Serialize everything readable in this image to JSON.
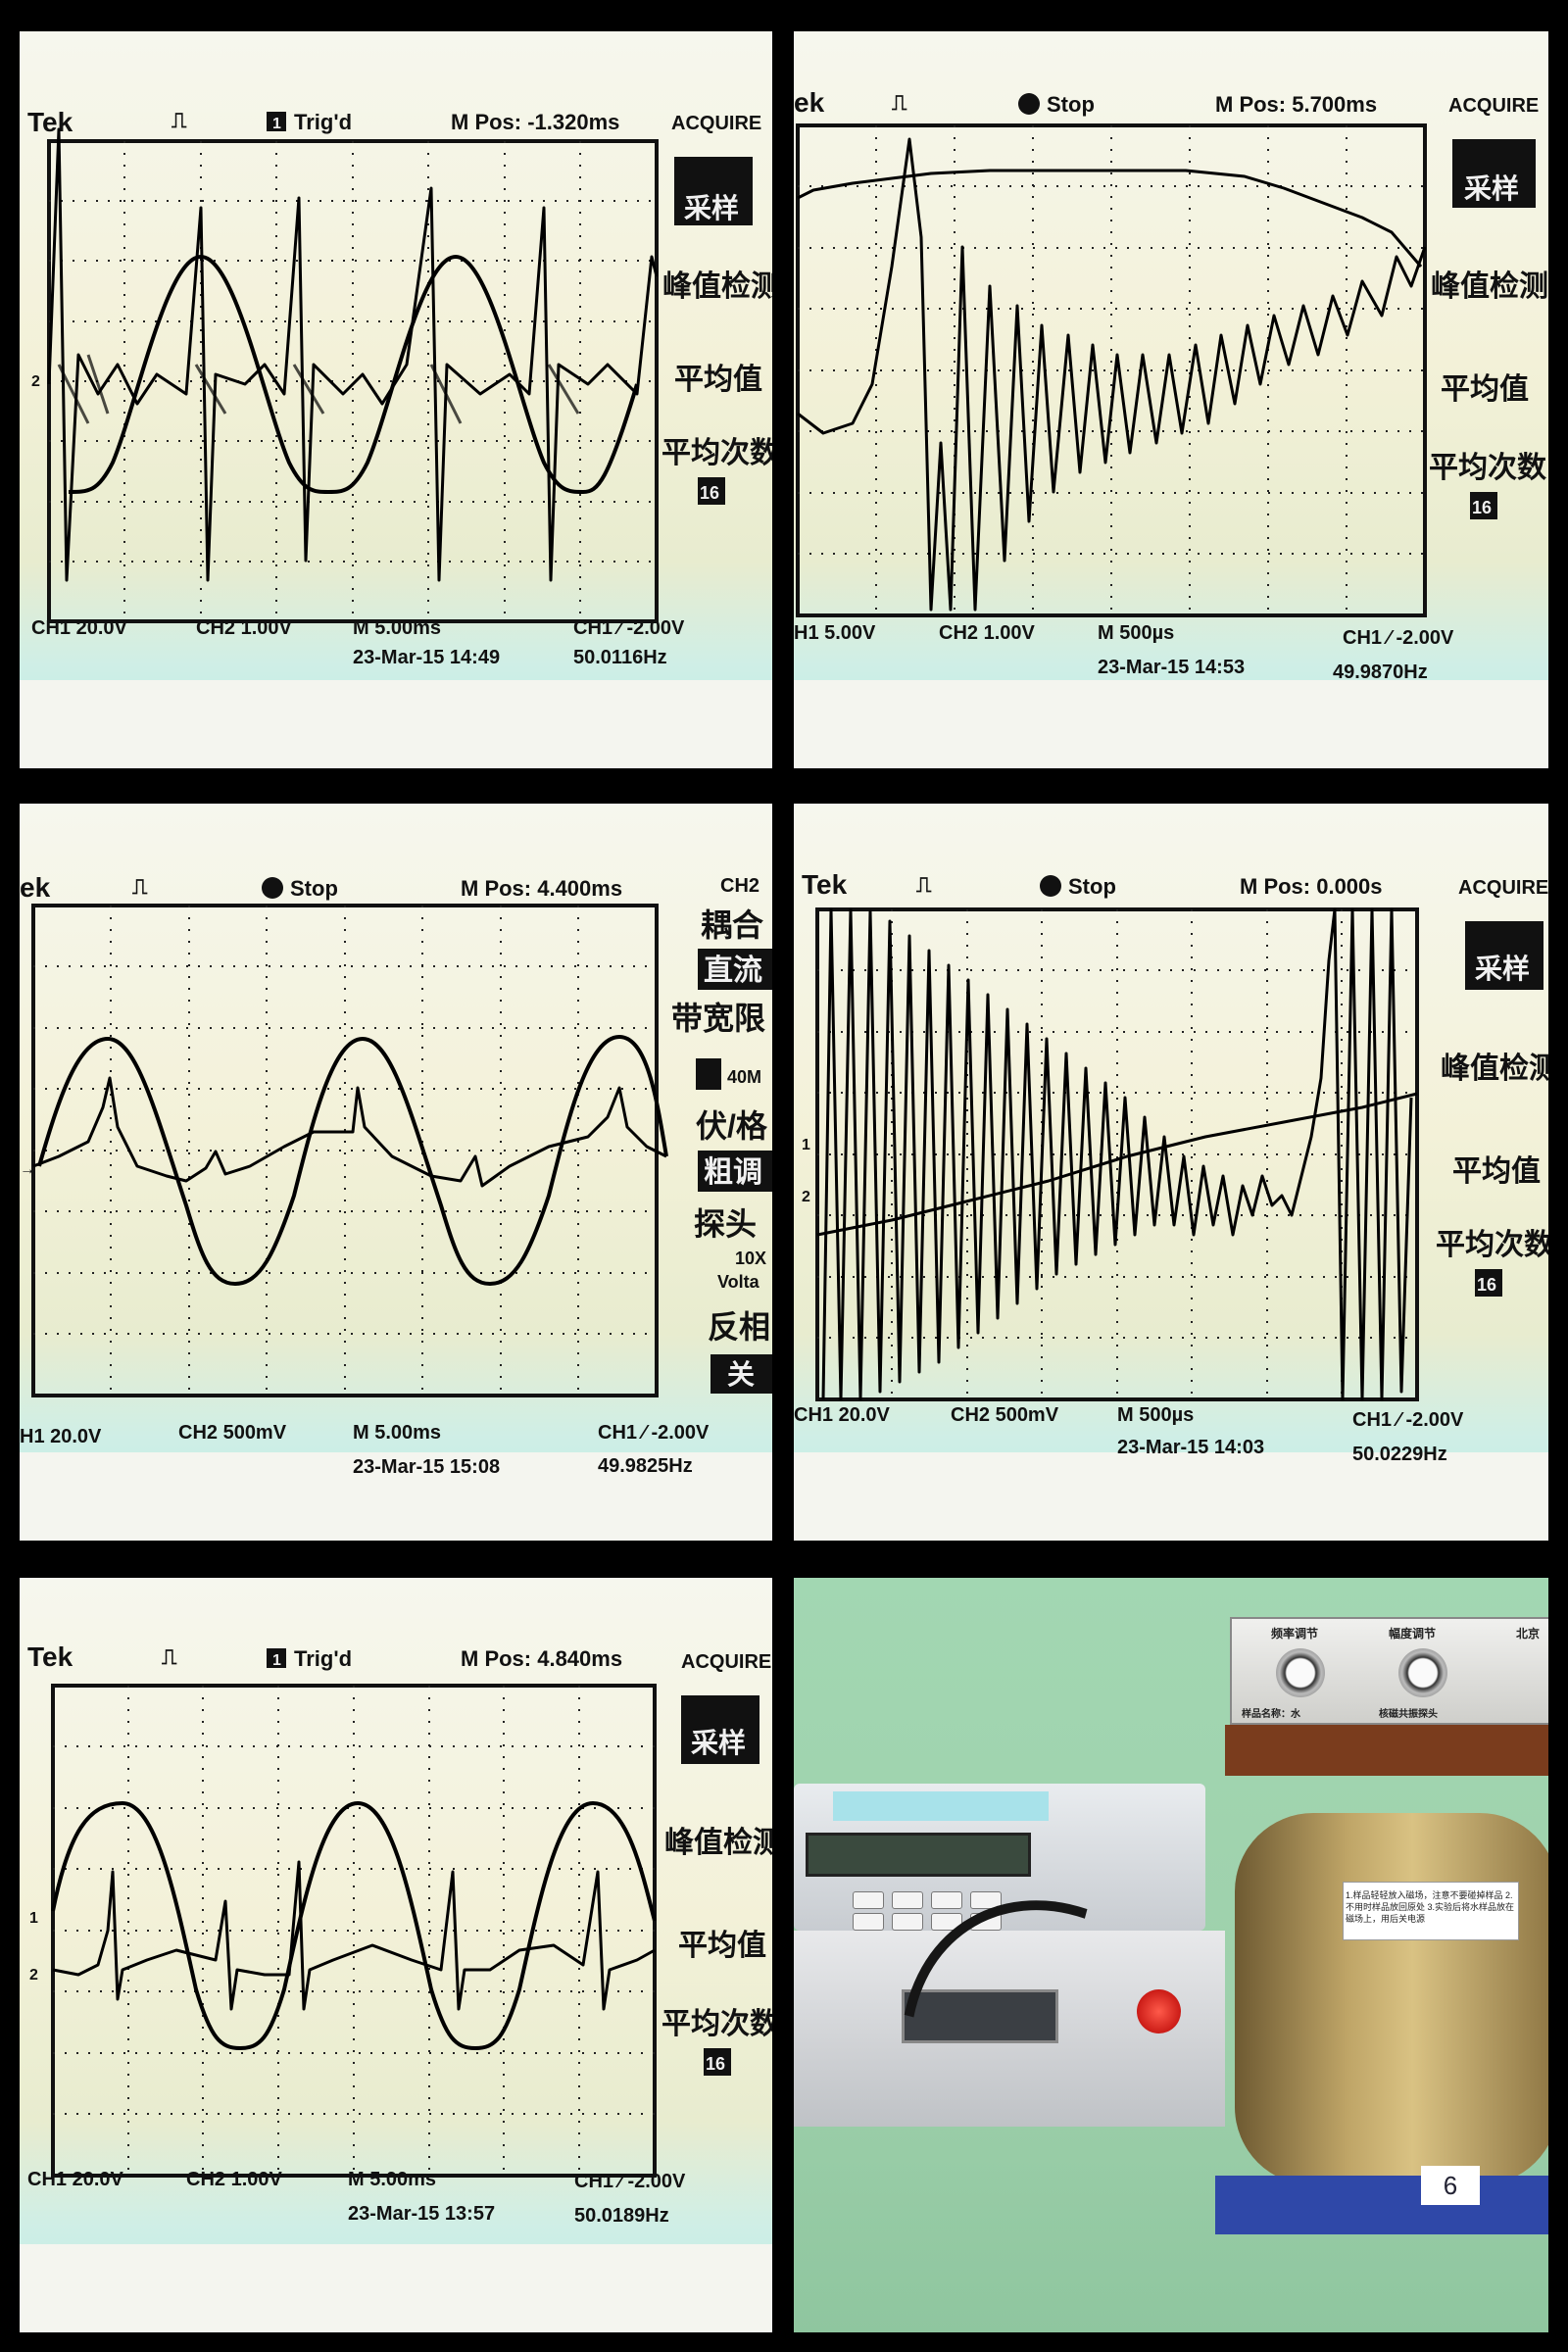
{
  "panels": [
    {
      "id": "scope-1",
      "top_left": "Tek",
      "trig_status": "Trig'd",
      "trig_icon": "1",
      "m_pos": "M Pos: -1.320ms",
      "menu_title": "ACQUIRE",
      "menu_items": [
        "采样",
        "峰值检测",
        "平均值",
        "平均次数",
        "16"
      ],
      "ch1": "CH1  20.0V",
      "ch2": "CH2  1.00V",
      "timebase": "M 5.00ms",
      "trigger": "CH1 ⁄ -2.00V",
      "date": "23-Mar-15 14:49",
      "freq": "50.0116Hz",
      "marker_ch2": "2"
    },
    {
      "id": "scope-2",
      "top_left": "ek",
      "trig_status": "Stop",
      "m_pos": "M Pos: 5.700ms",
      "menu_title": "ACQUIRE",
      "menu_items": [
        "采样",
        "峰值检测",
        "平均值",
        "平均次数",
        "16"
      ],
      "ch1": "H1  5.00V",
      "ch2": "CH2  1.00V",
      "timebase": "M 500µs",
      "trigger": "CH1 ⁄ -2.00V",
      "date": "23-Mar-15 14:53",
      "freq": "49.9870Hz"
    },
    {
      "id": "scope-3",
      "top_left": "ek",
      "trig_status": "Stop",
      "m_pos": "M Pos: 4.400ms",
      "menu_title": "CH2",
      "menu_items": [
        "耦合",
        "直流",
        "带宽限",
        "40M",
        "伏/格",
        "粗调",
        "探头",
        "10X",
        "Volta",
        "反相",
        "关"
      ],
      "ch1": "H1  20.0V",
      "ch2": "CH2  500mV",
      "timebase": "M 5.00ms",
      "trigger": "CH1 ⁄ -2.00V",
      "date": "23-Mar-15 15:08",
      "freq": "49.9825Hz"
    },
    {
      "id": "scope-4",
      "top_left": "Tek",
      "trig_status": "Stop",
      "m_pos": "M Pos: 0.000s",
      "menu_title": "ACQUIRE",
      "menu_items": [
        "采样",
        "峰值检测",
        "平均值",
        "平均次数",
        "16"
      ],
      "ch1": "CH1  20.0V",
      "ch2": "CH2  500mV",
      "timebase": "M 500µs",
      "trigger": "CH1 ⁄ -2.00V",
      "date": "23-Mar-15 14:03",
      "freq": "50.0229Hz",
      "marker_ch1": "1",
      "marker_ch2": "2"
    },
    {
      "id": "scope-5",
      "top_left": "Tek",
      "trig_status": "Trig'd",
      "trig_icon": "1",
      "m_pos": "M Pos: 4.840ms",
      "menu_title": "ACQUIRE",
      "menu_items": [
        "采样",
        "峰值检测",
        "平均值",
        "平均次数",
        "16"
      ],
      "ch1": "CH1  20.0V",
      "ch2": "CH2  1.00V",
      "timebase": "M 5.00ms",
      "trigger": "CH1 ⁄ -2.00V",
      "date": "23-Mar-15 13:57",
      "freq": "50.0189Hz",
      "marker_ch1": "1",
      "marker_ch2": "2"
    }
  ],
  "lab_photo": {
    "knob_label_1": "频率调节",
    "knob_label_2": "幅度调节",
    "sample_label": "样品名称：水",
    "probe_label": "核磁共振探头",
    "location_label": "北京",
    "card_text": "1.样品轻轻放入磁场，注意不要碰掉样品  2.不用时样品放回原处  3.实验后将水样品放在磁场上，用后关电源",
    "tag": "6"
  }
}
